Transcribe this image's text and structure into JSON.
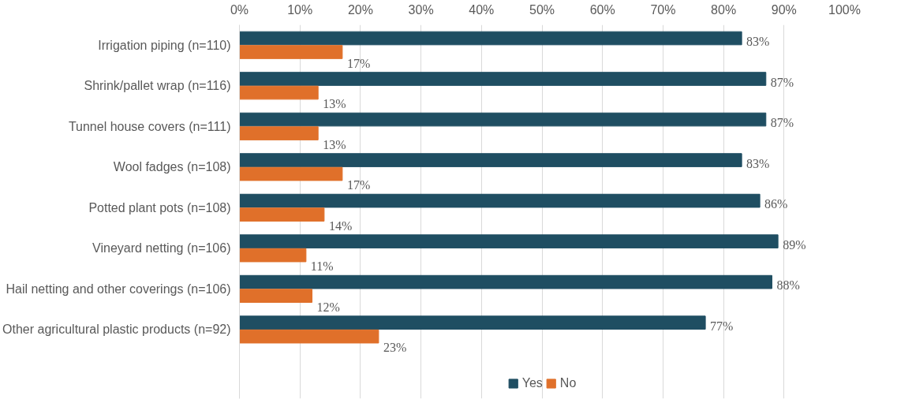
{
  "chart_data": {
    "type": "bar",
    "orientation": "horizontal",
    "categories": [
      "Irrigation piping (n=110)",
      "Shrink/pallet wrap (n=116)",
      "Tunnel house covers (n=111)",
      "Wool fadges (n=108)",
      "Potted plant pots (n=108)",
      "Vineyard netting (n=106)",
      "Hail netting and other coverings (n=106)",
      "Other agricultural plastic products (n=92)"
    ],
    "series": [
      {
        "name": "Yes",
        "color": "#1f4e62",
        "values": [
          83,
          87,
          87,
          83,
          86,
          89,
          88,
          77
        ],
        "value_labels": [
          "83%",
          "87%",
          "87%",
          "83%",
          "86%",
          "89%",
          "88%",
          "77%"
        ]
      },
      {
        "name": "No",
        "color": "#e0702a",
        "values": [
          17,
          13,
          13,
          17,
          14,
          11,
          12,
          23
        ],
        "value_labels": [
          "17%",
          "13%",
          "13%",
          "17%",
          "14%",
          "11%",
          "12%",
          "23%"
        ]
      }
    ],
    "xlim": [
      0,
      100
    ],
    "xticks": [
      {
        "value": 0,
        "label": "0%"
      },
      {
        "value": 10,
        "label": "10%"
      },
      {
        "value": 20,
        "label": "20%"
      },
      {
        "value": 30,
        "label": "30%"
      },
      {
        "value": 40,
        "label": "40%"
      },
      {
        "value": 50,
        "label": "50%"
      },
      {
        "value": 60,
        "label": "60%"
      },
      {
        "value": 70,
        "label": "70%"
      },
      {
        "value": 80,
        "label": "80%"
      },
      {
        "value": 90,
        "label": "90%"
      },
      {
        "value": 100,
        "label": "100%"
      }
    ],
    "grid": "x",
    "legend": "bottom"
  }
}
